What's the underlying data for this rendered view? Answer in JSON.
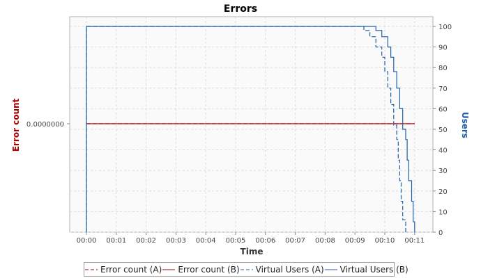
{
  "chart_data": {
    "type": "line",
    "title": "Errors",
    "xlabel": "Time",
    "ylabel_left": "Error count",
    "ylabel_right": "Users",
    "x_ticks": [
      "00:00",
      "00:01",
      "00:02",
      "00:03",
      "00:04",
      "00:05",
      "00:06",
      "00:07",
      "00:08",
      "00:09",
      "00:10",
      "00:11"
    ],
    "x_range": [
      "00:00",
      "00:11.6"
    ],
    "left_ticks": [
      "0.0000000"
    ],
    "right_ticks": [
      0,
      10,
      20,
      30,
      40,
      50,
      60,
      70,
      80,
      90,
      100
    ],
    "right_range": [
      0,
      100
    ],
    "grid": true,
    "legend_position": "bottom",
    "series": [
      {
        "name": "Error count (A)",
        "axis": "left",
        "color": "#aa0000",
        "dash": true,
        "points": [
          [
            "00:00",
            0
          ],
          [
            "00:11",
            0
          ]
        ]
      },
      {
        "name": "Error count (B)",
        "axis": "left",
        "color": "#aa0000",
        "dash": false,
        "points": [
          [
            "00:00",
            0
          ],
          [
            "00:11",
            0
          ]
        ]
      },
      {
        "name": "Virtual Users (A)",
        "axis": "right",
        "color": "#1f5fa8",
        "dash": true,
        "points": [
          [
            "00:00",
            0
          ],
          [
            "00:00",
            100
          ],
          [
            "00:09.1",
            100
          ],
          [
            "00:09.3",
            98
          ],
          [
            "00:09.5",
            95
          ],
          [
            "00:09.7",
            90
          ],
          [
            "00:09.9",
            85
          ],
          [
            "00:10.0",
            78
          ],
          [
            "00:10.1",
            70
          ],
          [
            "00:10.2",
            62
          ],
          [
            "00:10.3",
            52
          ],
          [
            "00:10.4",
            45
          ],
          [
            "00:10.45",
            35
          ],
          [
            "00:10.5",
            25
          ],
          [
            "00:10.55",
            15
          ],
          [
            "00:10.6",
            6
          ],
          [
            "00:10.7",
            0
          ]
        ]
      },
      {
        "name": "Virtual Users (B)",
        "axis": "right",
        "color": "#1f5fa8",
        "dash": false,
        "points": [
          [
            "00:00",
            0
          ],
          [
            "00:00",
            100
          ],
          [
            "00:09.5",
            100
          ],
          [
            "00:09.7",
            98
          ],
          [
            "00:09.9",
            95
          ],
          [
            "00:10.1",
            90
          ],
          [
            "00:10.2",
            85
          ],
          [
            "00:10.3",
            78
          ],
          [
            "00:10.4",
            70
          ],
          [
            "00:10.5",
            60
          ],
          [
            "00:10.6",
            50
          ],
          [
            "00:10.7",
            45
          ],
          [
            "00:10.75",
            35
          ],
          [
            "00:10.8",
            25
          ],
          [
            "00:10.9",
            15
          ],
          [
            "00:10.95",
            5
          ],
          [
            "00:11.0",
            0
          ]
        ]
      }
    ]
  }
}
